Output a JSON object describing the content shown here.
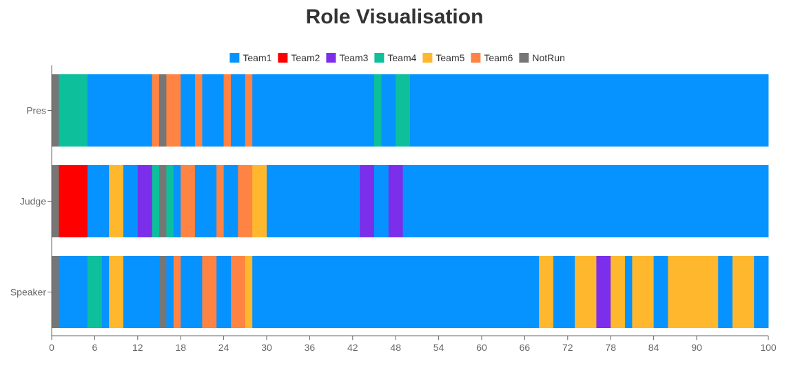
{
  "chart_data": {
    "type": "bar",
    "orientation": "horizontal-stacked-timeline",
    "title": "Role Visualisation",
    "xlabel": "",
    "ylabel": "",
    "xlim": [
      0,
      100
    ],
    "x_ticks": [
      0,
      6,
      12,
      18,
      24,
      30,
      36,
      42,
      48,
      54,
      60,
      66,
      72,
      78,
      84,
      90,
      100
    ],
    "categories": [
      "Pres",
      "Judge",
      "Speaker"
    ],
    "legend_position": "top-center",
    "grid": false,
    "series": [
      {
        "name": "Team1",
        "color": "#0693FF"
      },
      {
        "name": "Team2",
        "color": "#FF0000"
      },
      {
        "name": "Team3",
        "color": "#7B2FEB"
      },
      {
        "name": "Team4",
        "color": "#0DBF9A"
      },
      {
        "name": "Team5",
        "color": "#FFB82D"
      },
      {
        "name": "Team6",
        "color": "#FF8444"
      },
      {
        "name": "NotRun",
        "color": "#767676"
      }
    ],
    "segments": {
      "Pres": [
        [
          "NotRun",
          0,
          1
        ],
        [
          "Team4",
          1,
          5
        ],
        [
          "Team1",
          5,
          14
        ],
        [
          "Team6",
          14,
          15
        ],
        [
          "NotRun",
          15,
          16
        ],
        [
          "Team6",
          16,
          18
        ],
        [
          "Team1",
          18,
          20
        ],
        [
          "Team6",
          20,
          21
        ],
        [
          "Team1",
          21,
          24
        ],
        [
          "Team6",
          24,
          25
        ],
        [
          "Team1",
          25,
          27
        ],
        [
          "Team6",
          27,
          28
        ],
        [
          "Team1",
          28,
          45
        ],
        [
          "Team4",
          45,
          46
        ],
        [
          "Team1",
          46,
          48
        ],
        [
          "Team4",
          48,
          50
        ],
        [
          "Team1",
          50,
          100
        ]
      ],
      "Judge": [
        [
          "NotRun",
          0,
          1
        ],
        [
          "Team2",
          1,
          5
        ],
        [
          "Team1",
          5,
          8
        ],
        [
          "Team5",
          8,
          10
        ],
        [
          "Team1",
          10,
          12
        ],
        [
          "Team3",
          12,
          14
        ],
        [
          "Team4",
          14,
          15
        ],
        [
          "NotRun",
          15,
          16
        ],
        [
          "Team4",
          16,
          17
        ],
        [
          "Team1",
          17,
          18
        ],
        [
          "Team6",
          18,
          20
        ],
        [
          "Team1",
          20,
          23
        ],
        [
          "Team6",
          23,
          24
        ],
        [
          "Team1",
          24,
          26
        ],
        [
          "Team6",
          26,
          28
        ],
        [
          "Team5",
          28,
          30
        ],
        [
          "Team1",
          30,
          43
        ],
        [
          "Team3",
          43,
          45
        ],
        [
          "Team1",
          45,
          47
        ],
        [
          "Team3",
          47,
          49
        ],
        [
          "Team1",
          49,
          100
        ]
      ],
      "Speaker": [
        [
          "NotRun",
          0,
          1
        ],
        [
          "Team1",
          1,
          5
        ],
        [
          "Team4",
          5,
          7
        ],
        [
          "Team1",
          7,
          8
        ],
        [
          "Team5",
          8,
          10
        ],
        [
          "Team1",
          10,
          15
        ],
        [
          "NotRun",
          15,
          16
        ],
        [
          "Team1",
          16,
          17
        ],
        [
          "Team6",
          17,
          18
        ],
        [
          "Team1",
          18,
          21
        ],
        [
          "Team6",
          21,
          23
        ],
        [
          "Team1",
          23,
          25
        ],
        [
          "Team6",
          25,
          27
        ],
        [
          "Team5",
          27,
          28
        ],
        [
          "Team1",
          28,
          68
        ],
        [
          "Team5",
          68,
          70
        ],
        [
          "Team1",
          70,
          73
        ],
        [
          "Team5",
          73,
          76
        ],
        [
          "Team3",
          76,
          78
        ],
        [
          "Team5",
          78,
          80
        ],
        [
          "Team1",
          80,
          81
        ],
        [
          "Team5",
          81,
          84
        ],
        [
          "Team1",
          84,
          86
        ],
        [
          "Team5",
          86,
          93
        ],
        [
          "Team1",
          93,
          95
        ],
        [
          "Team5",
          95,
          98
        ],
        [
          "Team1",
          98,
          100
        ]
      ]
    }
  }
}
